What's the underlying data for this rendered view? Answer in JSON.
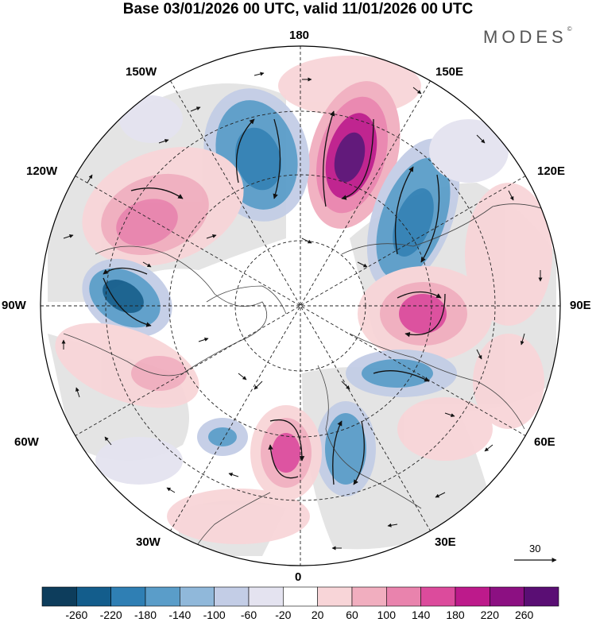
{
  "title": "Base 03/01/2026 00 UTC, valid 11/01/2026 00 UTC",
  "brand": "MODES",
  "brand_mark": "©",
  "longitudes": {
    "lon180": "180",
    "lon150w": "150W",
    "lon150e": "150E",
    "lon120w": "120W",
    "lon120e": "120E",
    "lon90w": "90W",
    "lon90e": "90E",
    "lon60w": "60W",
    "lon60e": "60E",
    "lon30w": "30W",
    "lon30e": "30E",
    "lon0": "0"
  },
  "vector_scale": "30",
  "colorbar": {
    "ticks": [
      "-260",
      "-220",
      "-180",
      "-140",
      "-100",
      "-60",
      "-20",
      "20",
      "60",
      "100",
      "140",
      "180",
      "220",
      "260"
    ],
    "colors": [
      "#0d3d5c",
      "#135d8c",
      "#2f7fb4",
      "#5a9dc9",
      "#90b8da",
      "#c3cde6",
      "#e4e3f0",
      "#ffffff",
      "#f8d5d8",
      "#f1aebf",
      "#e983ad",
      "#dc4b9c",
      "#bd1a8b",
      "#8c1082",
      "#5a0e74"
    ]
  },
  "colors": {
    "land_shading": "#e4e4e4",
    "coastline": "#444444",
    "grid": "#222222"
  }
}
